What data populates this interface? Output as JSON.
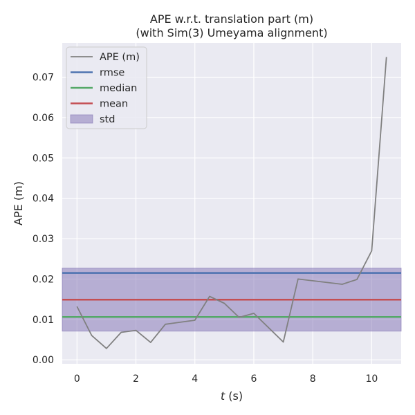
{
  "chart_data": {
    "type": "line",
    "title": "APE w.r.t. translation part (m)",
    "subtitle": "(with Sim(3) Umeyama alignment)",
    "xlabel_var": "t",
    "xlabel_unit": " (s)",
    "ylabel": "APE (m)",
    "xlim": [
      -0.5,
      11.0
    ],
    "ylim": [
      -0.001,
      0.0785
    ],
    "xticks": [
      0,
      2,
      4,
      6,
      8,
      10
    ],
    "xtick_labels": [
      "0",
      "2",
      "4",
      "6",
      "8",
      "10"
    ],
    "yticks": [
      0.0,
      0.01,
      0.02,
      0.03,
      0.04,
      0.05,
      0.06,
      0.07
    ],
    "ytick_labels": [
      "0.00",
      "0.01",
      "0.02",
      "0.03",
      "0.04",
      "0.05",
      "0.06",
      "0.07"
    ],
    "grid": true,
    "legend_position": "top-left",
    "series": [
      {
        "name": "APE (m)",
        "color": "#808080",
        "x": [
          0,
          0.5,
          1.0,
          1.5,
          2.0,
          2.5,
          3.0,
          4.0,
          4.5,
          5.0,
          5.5,
          6.0,
          7.0,
          7.5,
          9.0,
          9.5,
          10.0,
          10.5
        ],
        "y": [
          0.0132,
          0.006,
          0.0028,
          0.0068,
          0.0073,
          0.0043,
          0.0088,
          0.0098,
          0.0157,
          0.014,
          0.0105,
          0.0115,
          0.0044,
          0.02,
          0.0187,
          0.0199,
          0.027,
          0.075
        ]
      }
    ],
    "stats": [
      {
        "name": "rmse",
        "value": 0.0215,
        "color": "#4c72b0"
      },
      {
        "name": "median",
        "value": 0.0106,
        "color": "#55a868"
      },
      {
        "name": "mean",
        "value": 0.0149,
        "color": "#c44e52"
      }
    ],
    "std_band": {
      "name": "std",
      "low": 0.0071,
      "high": 0.0227,
      "color": "#8172b3"
    }
  }
}
